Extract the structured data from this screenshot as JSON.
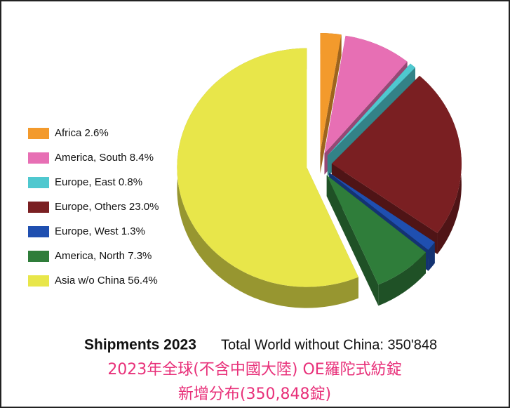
{
  "chart_data": {
    "type": "pie",
    "title": "Shipments 2023",
    "subtitle": "Total World without China: 350'848",
    "caption": [
      "2023年全球(不含中國大陸) OE羅陀式紡錠",
      "新增分布(350,848錠)"
    ],
    "categories": [
      "Africa",
      "America, South",
      "Europe, East",
      "Europe, Others",
      "Europe, West",
      "America, North",
      "Asia w/o China"
    ],
    "values": [
      2.6,
      8.4,
      0.8,
      23.0,
      1.3,
      7.3,
      56.4
    ],
    "value_labels": [
      "2.6%",
      "8.4%",
      "0.8%",
      "23.0%",
      "1.3%",
      "7.3%",
      "56.4%"
    ],
    "colors": [
      "#f39a2c",
      "#e76fb4",
      "#4fc8cf",
      "#7a1f22",
      "#1f4fb0",
      "#2f7d3a",
      "#e8e64a"
    ],
    "legend": "left"
  }
}
